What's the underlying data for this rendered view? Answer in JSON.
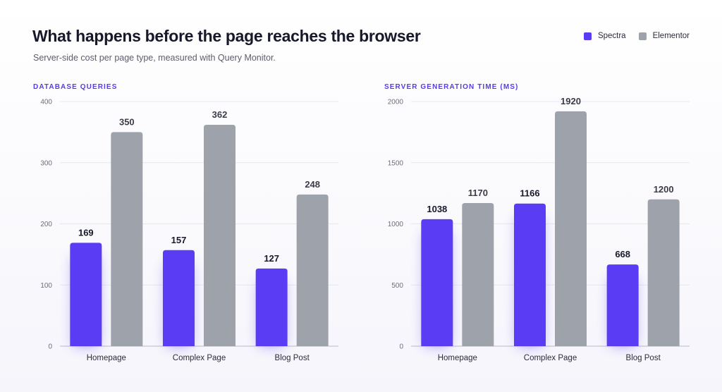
{
  "header": {
    "title": "What happens before the page reaches the browser",
    "subtitle": "Server-side cost per page type, measured with Query Monitor."
  },
  "legend": {
    "items": [
      {
        "label": "Spectra",
        "color": "#5b3cf5"
      },
      {
        "label": "Elementor",
        "color": "#9ea3ab"
      }
    ]
  },
  "colors": {
    "spectra": "#5b3cf5",
    "elementor": "#9ea3ab",
    "spectra_label": "#17182a",
    "elementor_label": "#3a3c48",
    "grid": "#e6e6ee",
    "axis": "#b9bac4"
  },
  "chart_data": [
    {
      "type": "bar",
      "title": "DATABASE QUERIES",
      "categories": [
        "Homepage",
        "Complex Page",
        "Blog Post"
      ],
      "series": [
        {
          "name": "Spectra",
          "values": [
            169,
            157,
            127
          ]
        },
        {
          "name": "Elementor",
          "values": [
            350,
            362,
            248
          ]
        }
      ],
      "ylim": [
        0,
        400
      ],
      "yticks": [
        0,
        100,
        200,
        300,
        400
      ],
      "grid": true,
      "legend": "top-right"
    },
    {
      "type": "bar",
      "title": "SERVER GENERATION TIME (MS)",
      "categories": [
        "Homepage",
        "Complex Page",
        "Blog Post"
      ],
      "series": [
        {
          "name": "Spectra",
          "values": [
            1038,
            1166,
            668
          ]
        },
        {
          "name": "Elementor",
          "values": [
            1170,
            1920,
            1200
          ]
        }
      ],
      "ylim": [
        0,
        2000
      ],
      "yticks": [
        0,
        500,
        1000,
        1500,
        2000
      ],
      "grid": true,
      "legend": "top-right"
    }
  ]
}
